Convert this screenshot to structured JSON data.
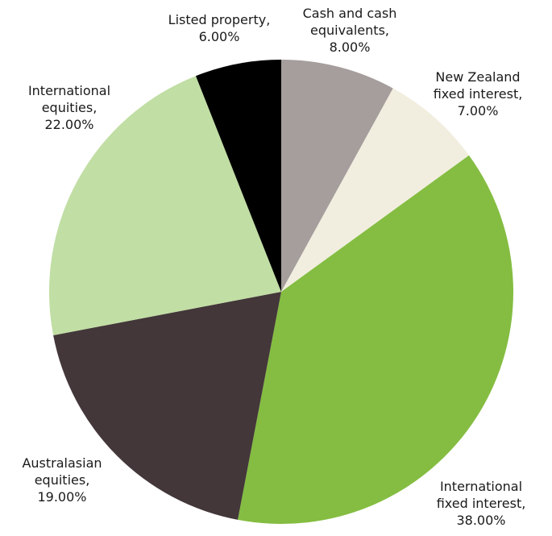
{
  "chart_data": {
    "type": "pie",
    "start_angle_deg": 0,
    "direction": "clockwise",
    "slices": [
      {
        "name": "Cash and cash equivalents",
        "value": 8.0,
        "label_lines": [
          "Cash and cash",
          "equivalents,",
          "8.00%"
        ],
        "color": "#a59e9c"
      },
      {
        "name": "New Zealand fixed interest",
        "value": 7.0,
        "label_lines": [
          "New Zealand",
          "fixed interest,",
          "7.00%"
        ],
        "color": "#f1eedf"
      },
      {
        "name": "International fixed interest",
        "value": 38.0,
        "label_lines": [
          "International",
          "fixed interest,",
          "38.00%"
        ],
        "color": "#84bd41"
      },
      {
        "name": "Australasian equities",
        "value": 19.0,
        "label_lines": [
          "Australasian",
          "equities,",
          "19.00%"
        ],
        "color": "#433739"
      },
      {
        "name": "International equities",
        "value": 22.0,
        "label_lines": [
          "International",
          "equities,",
          "22.00%"
        ],
        "color": "#c1dea4"
      },
      {
        "name": "Listed property",
        "value": 6.0,
        "label_lines": [
          "Listed property,",
          "6.00%"
        ],
        "color": "#000000"
      }
    ]
  }
}
